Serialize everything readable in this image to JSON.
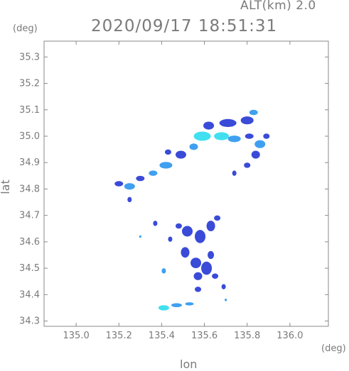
{
  "header": {
    "altitude_label": "ALT(km) 2.0",
    "timestamp": "2020/09/17 18:51:31"
  },
  "chart_data": {
    "type": "heatmap",
    "title": "2020/09/17 18:51:31",
    "subtitle": "ALT(km) 2.0",
    "xlabel": "lon",
    "ylabel": "lat",
    "x_unit": "(deg)",
    "y_unit": "(deg)",
    "xlim": [
      134.85,
      136.18
    ],
    "ylim": [
      34.28,
      35.36
    ],
    "x_ticks": [
      "135.0",
      "135.2",
      "135.4",
      "135.6",
      "135.8",
      "136.0"
    ],
    "y_ticks": [
      "34.3",
      "34.4",
      "34.5",
      "34.6",
      "34.7",
      "34.8",
      "34.9",
      "35.0",
      "35.1",
      "35.2",
      "35.3"
    ],
    "grid": false,
    "colors": {
      "weak": "#3a4bd8",
      "moderate": "#3fa0f0",
      "strong": "#41e0f0",
      "axis": "#7a7a7a"
    },
    "echo_cells": [
      {
        "lon": 135.2,
        "lat": 34.82,
        "w": 0.04,
        "h": 0.02,
        "level": "weak"
      },
      {
        "lon": 135.25,
        "lat": 34.81,
        "w": 0.05,
        "h": 0.025,
        "level": "moderate"
      },
      {
        "lon": 135.3,
        "lat": 34.84,
        "w": 0.04,
        "h": 0.02,
        "level": "weak"
      },
      {
        "lon": 135.36,
        "lat": 34.86,
        "w": 0.04,
        "h": 0.02,
        "level": "moderate"
      },
      {
        "lon": 135.42,
        "lat": 34.89,
        "w": 0.06,
        "h": 0.025,
        "level": "moderate"
      },
      {
        "lon": 135.49,
        "lat": 34.93,
        "w": 0.05,
        "h": 0.03,
        "level": "weak"
      },
      {
        "lon": 135.43,
        "lat": 34.94,
        "w": 0.03,
        "h": 0.02,
        "level": "weak"
      },
      {
        "lon": 135.55,
        "lat": 34.96,
        "w": 0.04,
        "h": 0.025,
        "level": "moderate"
      },
      {
        "lon": 135.59,
        "lat": 35.0,
        "w": 0.08,
        "h": 0.035,
        "level": "strong"
      },
      {
        "lon": 135.62,
        "lat": 35.04,
        "w": 0.05,
        "h": 0.03,
        "level": "weak"
      },
      {
        "lon": 135.68,
        "lat": 35.0,
        "w": 0.07,
        "h": 0.03,
        "level": "strong"
      },
      {
        "lon": 135.74,
        "lat": 34.99,
        "w": 0.06,
        "h": 0.025,
        "level": "moderate"
      },
      {
        "lon": 135.71,
        "lat": 35.05,
        "w": 0.08,
        "h": 0.03,
        "level": "weak"
      },
      {
        "lon": 135.8,
        "lat": 35.06,
        "w": 0.06,
        "h": 0.03,
        "level": "weak"
      },
      {
        "lon": 135.83,
        "lat": 35.09,
        "w": 0.04,
        "h": 0.02,
        "level": "moderate"
      },
      {
        "lon": 135.81,
        "lat": 35.0,
        "w": 0.04,
        "h": 0.02,
        "level": "weak"
      },
      {
        "lon": 135.86,
        "lat": 34.97,
        "w": 0.05,
        "h": 0.03,
        "level": "moderate"
      },
      {
        "lon": 135.89,
        "lat": 35.0,
        "w": 0.03,
        "h": 0.02,
        "level": "weak"
      },
      {
        "lon": 135.84,
        "lat": 34.93,
        "w": 0.04,
        "h": 0.03,
        "level": "weak"
      },
      {
        "lon": 135.8,
        "lat": 34.89,
        "w": 0.03,
        "h": 0.02,
        "level": "weak"
      },
      {
        "lon": 135.74,
        "lat": 34.86,
        "w": 0.02,
        "h": 0.02,
        "level": "weak"
      },
      {
        "lon": 135.25,
        "lat": 34.76,
        "w": 0.02,
        "h": 0.02,
        "level": "weak"
      },
      {
        "lon": 135.37,
        "lat": 34.67,
        "w": 0.02,
        "h": 0.02,
        "level": "weak"
      },
      {
        "lon": 135.48,
        "lat": 34.66,
        "w": 0.03,
        "h": 0.02,
        "level": "weak"
      },
      {
        "lon": 135.52,
        "lat": 34.64,
        "w": 0.05,
        "h": 0.04,
        "level": "weak"
      },
      {
        "lon": 135.58,
        "lat": 34.62,
        "w": 0.05,
        "h": 0.05,
        "level": "weak"
      },
      {
        "lon": 135.63,
        "lat": 34.66,
        "w": 0.04,
        "h": 0.04,
        "level": "weak"
      },
      {
        "lon": 135.66,
        "lat": 34.69,
        "w": 0.03,
        "h": 0.02,
        "level": "weak"
      },
      {
        "lon": 135.44,
        "lat": 34.61,
        "w": 0.02,
        "h": 0.02,
        "level": "weak"
      },
      {
        "lon": 135.51,
        "lat": 34.56,
        "w": 0.04,
        "h": 0.04,
        "level": "weak"
      },
      {
        "lon": 135.56,
        "lat": 34.52,
        "w": 0.05,
        "h": 0.04,
        "level": "weak"
      },
      {
        "lon": 135.61,
        "lat": 34.5,
        "w": 0.05,
        "h": 0.05,
        "level": "weak"
      },
      {
        "lon": 135.63,
        "lat": 34.55,
        "w": 0.03,
        "h": 0.03,
        "level": "weak"
      },
      {
        "lon": 135.57,
        "lat": 34.47,
        "w": 0.04,
        "h": 0.03,
        "level": "weak"
      },
      {
        "lon": 135.65,
        "lat": 34.47,
        "w": 0.03,
        "h": 0.02,
        "level": "weak"
      },
      {
        "lon": 135.41,
        "lat": 34.49,
        "w": 0.02,
        "h": 0.02,
        "level": "moderate"
      },
      {
        "lon": 135.57,
        "lat": 34.42,
        "w": 0.03,
        "h": 0.02,
        "level": "weak"
      },
      {
        "lon": 135.69,
        "lat": 34.43,
        "w": 0.02,
        "h": 0.02,
        "level": "weak"
      },
      {
        "lon": 135.41,
        "lat": 34.35,
        "w": 0.05,
        "h": 0.02,
        "level": "strong"
      },
      {
        "lon": 135.47,
        "lat": 34.36,
        "w": 0.05,
        "h": 0.015,
        "level": "moderate"
      },
      {
        "lon": 135.53,
        "lat": 34.365,
        "w": 0.04,
        "h": 0.012,
        "level": "moderate"
      },
      {
        "lon": 135.7,
        "lat": 34.38,
        "w": 0.01,
        "h": 0.01,
        "level": "moderate"
      },
      {
        "lon": 135.3,
        "lat": 34.62,
        "w": 0.01,
        "h": 0.01,
        "level": "moderate"
      }
    ]
  }
}
